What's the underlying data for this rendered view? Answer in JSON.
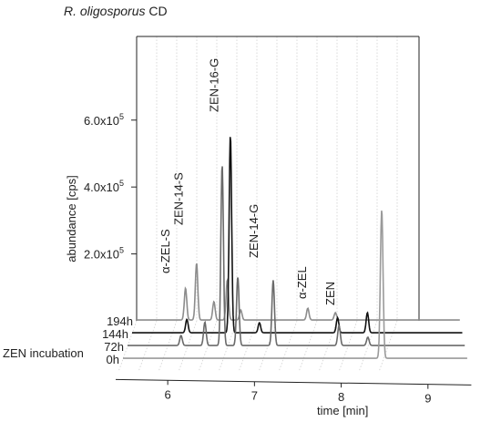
{
  "chart_data": {
    "type": "line",
    "title_italic": "R. oligosporus",
    "title_rest": " CD",
    "xlabel": "time [min]",
    "ylabel": "abundance [cps]",
    "zlabel": "ZEN incubation",
    "xlim": [
      5.4,
      9.5
    ],
    "ylim": [
      0,
      850000
    ],
    "x_ticks": [
      6,
      7,
      8,
      9
    ],
    "y_ticks": [
      {
        "value": 200000,
        "mantissa": "2.0x10",
        "exp": "5"
      },
      {
        "value": 400000,
        "mantissa": "4.0x10",
        "exp": "5"
      },
      {
        "value": 600000,
        "mantissa": "6.0x10",
        "exp": "5"
      }
    ],
    "annotations": [
      {
        "text": "α-ZEL-S",
        "x": 5.98
      },
      {
        "text": "ZEN-14-S",
        "x": 6.12
      },
      {
        "text": "ZEN-16-G",
        "x": 6.55
      },
      {
        "text": "ZEN-14-G",
        "x": 7.03
      },
      {
        "text": "α-ZEL",
        "x": 7.62
      },
      {
        "text": "ZEN",
        "x": 7.95
      }
    ],
    "series": [
      {
        "name": "194h",
        "color": "#8c8c8c",
        "peaks": [
          [
            6.02,
            95000
          ],
          [
            6.16,
            170000
          ],
          [
            6.38,
            55000
          ],
          [
            6.55,
            120000
          ],
          [
            6.72,
            30000
          ],
          [
            7.57,
            35000
          ],
          [
            7.92,
            22000
          ]
        ]
      },
      {
        "name": "144h",
        "color": "#111111",
        "peaks": [
          [
            6.08,
            40000
          ],
          [
            6.62,
            590000
          ],
          [
            6.98,
            30000
          ],
          [
            7.95,
            45000
          ],
          [
            8.32,
            60000
          ]
        ]
      },
      {
        "name": "72h",
        "color": "#6a6a6a",
        "peaks": [
          [
            6.05,
            30000
          ],
          [
            6.34,
            70000
          ],
          [
            6.55,
            540000
          ],
          [
            6.74,
            205000
          ],
          [
            7.17,
            195000
          ],
          [
            7.97,
            60000
          ],
          [
            8.32,
            25000
          ]
        ]
      },
      {
        "name": "0h",
        "color": "#9a9a9a",
        "peaks": [
          [
            8.48,
            445000
          ]
        ]
      }
    ]
  }
}
